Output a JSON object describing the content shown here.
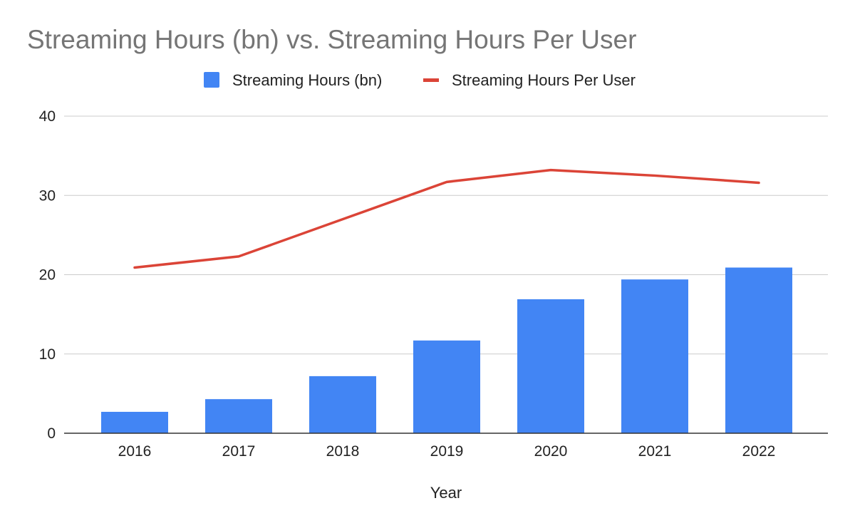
{
  "chart_data": {
    "type": "bar",
    "title": "Streaming Hours  (bn) vs. Streaming Hours Per User",
    "xlabel": "Year",
    "ylabel": "",
    "ylim": [
      0,
      40
    ],
    "yticks": [
      0,
      10,
      20,
      30,
      40
    ],
    "grid": true,
    "legend_position": "top-center",
    "categories": [
      "2016",
      "2017",
      "2018",
      "2019",
      "2020",
      "2021",
      "2022"
    ],
    "series": [
      {
        "name": "Streaming Hours  (bn)",
        "type": "bar",
        "color": "#4285f4",
        "values": [
          2.7,
          4.3,
          7.2,
          11.7,
          16.9,
          19.4,
          20.9
        ]
      },
      {
        "name": "Streaming Hours Per User",
        "type": "line",
        "color": "#db4437",
        "values": [
          20.9,
          22.3,
          27.0,
          31.7,
          33.2,
          32.5,
          31.6
        ]
      }
    ]
  }
}
